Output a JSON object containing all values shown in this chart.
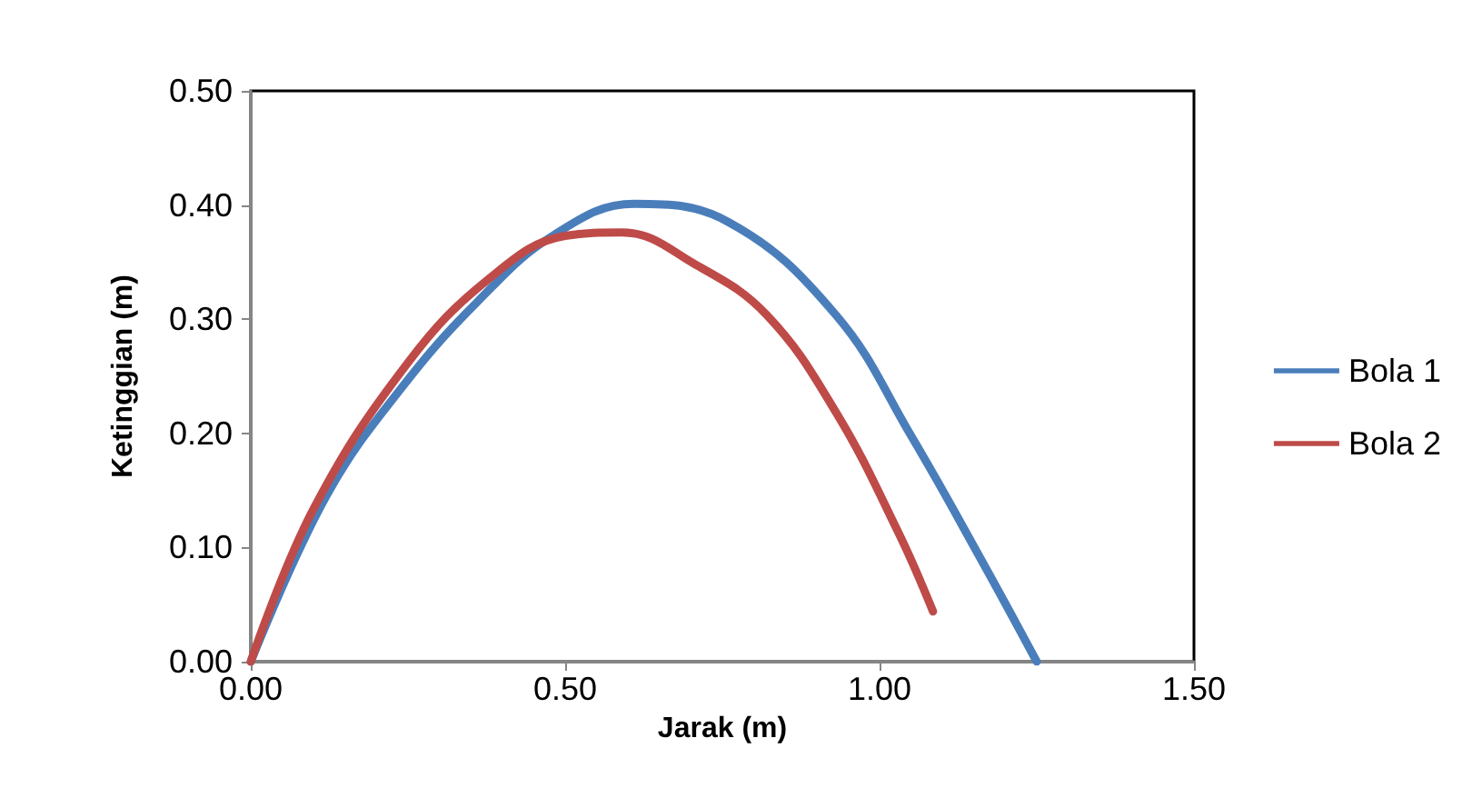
{
  "chart_data": {
    "type": "line",
    "xlabel": "Jarak (m)",
    "ylabel": "Ketinggian (m)",
    "xlim": [
      0,
      1.5
    ],
    "ylim": [
      0,
      0.5
    ],
    "xticks": [
      {
        "value": 0,
        "label": "0.00"
      },
      {
        "value": 0.5,
        "label": "0.50"
      },
      {
        "value": 1,
        "label": "1.00"
      },
      {
        "value": 1.5,
        "label": "1.50"
      }
    ],
    "yticks": [
      {
        "value": 0,
        "label": "0.00"
      },
      {
        "value": 0.1,
        "label": "0.10"
      },
      {
        "value": 0.2,
        "label": "0.20"
      },
      {
        "value": 0.3,
        "label": "0.30"
      },
      {
        "value": 0.4,
        "label": "0.40"
      },
      {
        "value": 0.5,
        "label": "0.50"
      }
    ],
    "grid": false,
    "legend": "right",
    "marker": "none",
    "line_style": "solid",
    "series": [
      {
        "name": "Bola 1",
        "color": "#4a7ebb",
        "x": [
          0,
          0.12,
          0.24,
          0.36,
          0.48,
          0.61,
          0.76,
          0.93,
          1.05,
          1.16,
          1.25
        ],
        "values": [
          0,
          0.145,
          0.24,
          0.315,
          0.373,
          0.401,
          0.385,
          0.304,
          0.198,
          0.091,
          0
        ]
      },
      {
        "name": "Bola 2",
        "color": "#be4b48",
        "x": [
          0,
          0.1,
          0.25,
          0.38,
          0.5,
          0.59,
          0.71,
          0.82,
          0.93,
          1.03,
          1.085
        ],
        "values": [
          0,
          0.134,
          0.262,
          0.336,
          0.373,
          0.376,
          0.347,
          0.304,
          0.219,
          0.113,
          0.044
        ]
      }
    ]
  }
}
